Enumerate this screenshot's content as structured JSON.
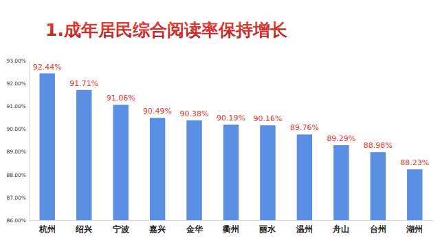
{
  "chart_data": {
    "type": "bar",
    "title": "1.成年居民综合阅读率保持增长",
    "categories": [
      "杭州",
      "绍兴",
      "宁波",
      "嘉兴",
      "金华",
      "衢州",
      "丽水",
      "温州",
      "舟山",
      "台州",
      "湖州"
    ],
    "values": [
      92.44,
      91.71,
      91.06,
      90.49,
      90.38,
      90.19,
      90.16,
      89.76,
      89.29,
      88.98,
      88.23
    ],
    "value_labels": [
      "92.44%",
      "91.71%",
      "91.06%",
      "90.49%",
      "90.38%",
      "90.19%",
      "90.16%",
      "89.76%",
      "89.29%",
      "88.98%",
      "88.23%"
    ],
    "color": "#5b8fe3",
    "ylim": [
      86,
      93
    ],
    "yticks": [
      {
        "value": 86,
        "label": "86.00%"
      },
      {
        "value": 87,
        "label": "87.00%"
      },
      {
        "value": 88,
        "label": "88.00%"
      },
      {
        "value": 89,
        "label": "89.00%"
      },
      {
        "value": 90,
        "label": "90.00%"
      },
      {
        "value": 91,
        "label": "91.00%"
      },
      {
        "value": 92,
        "label": "92.00%"
      },
      {
        "value": 93,
        "label": "93.00%"
      }
    ],
    "grid": false,
    "data_labels": true
  }
}
